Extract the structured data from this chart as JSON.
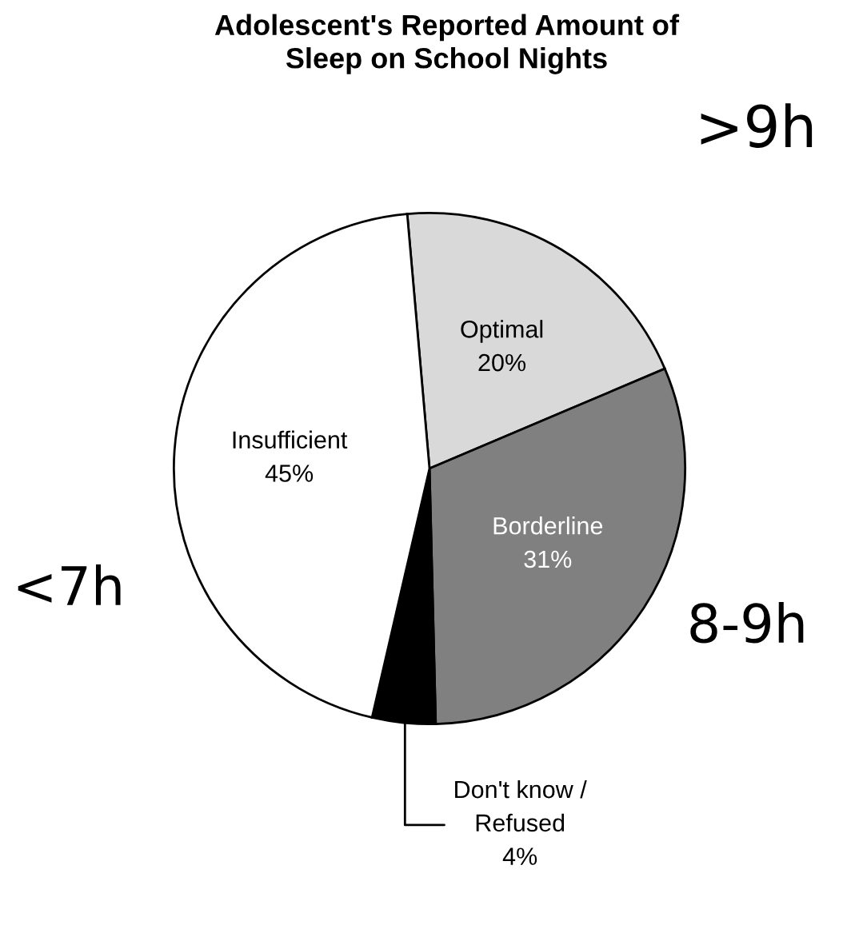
{
  "chart_data": {
    "type": "pie",
    "title": "Adolescent's Reported Amount of\nSleep on School Nights",
    "categories": [
      "Optimal",
      "Borderline",
      "Don't know /\nRefused",
      "Insufficient"
    ],
    "values": [
      20,
      31,
      4,
      45
    ],
    "value_labels": [
      "20%",
      "31%",
      "4%",
      "45%"
    ],
    "colors": [
      "#d9d9d9",
      "#808080",
      "#000000",
      "#ffffff"
    ],
    "annotations": [
      ">9h",
      "8-9h",
      "<7h"
    ]
  }
}
